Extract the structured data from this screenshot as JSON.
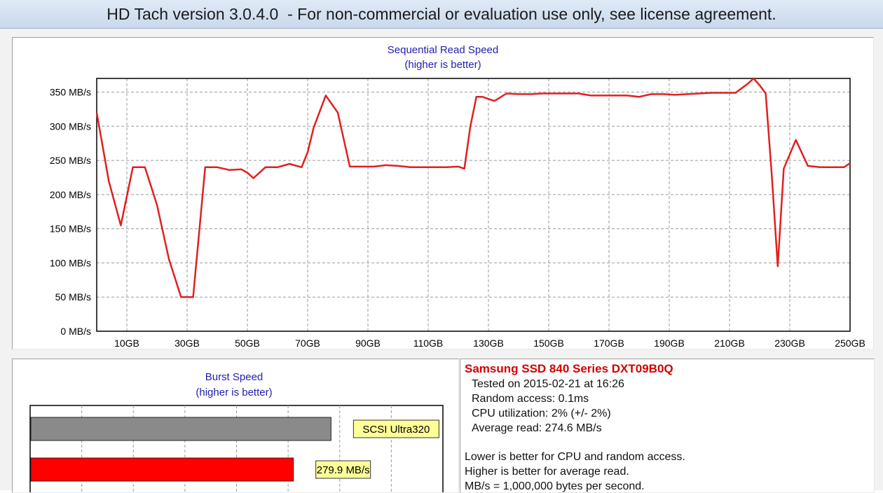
{
  "window": {
    "title": "HD Tach version 3.0.4.0  - For non-commercial or evaluation use only, see license agreement."
  },
  "sequential": {
    "title": "Sequential Read Speed",
    "subtitle": "(higher is better)"
  },
  "burst": {
    "title": "Burst Speed",
    "subtitle": "(higher is better)",
    "bars": [
      {
        "label": "SCSI Ultra320",
        "value": 320,
        "color": "#8a8a8a"
      },
      {
        "label": "279.9 MB/s",
        "value": 279.9,
        "color": "#ff0000"
      }
    ]
  },
  "info": {
    "drive": "Samsung SSD 840 Series DXT09B0Q",
    "tested": "Tested on 2015-02-21 at 16:26",
    "random_access": "Random access: 0.1ms",
    "cpu": "CPU utilization: 2% (+/- 2%)",
    "avg_read": "Average read: 274.6 MB/s",
    "note1": "Lower is better for CPU and random access.",
    "note2": "Higher is better for average read.",
    "note3": "MB/s = 1,000,000 bytes per second."
  },
  "chart_data": {
    "type": "line",
    "title": "Sequential Read Speed",
    "subtitle": "(higher is better)",
    "xlim": [
      0,
      250
    ],
    "ylim": [
      0,
      370
    ],
    "x_ticks": [
      10,
      30,
      50,
      70,
      90,
      110,
      130,
      150,
      170,
      190,
      210,
      230,
      250
    ],
    "x_tick_labels": [
      "10GB",
      "30GB",
      "50GB",
      "70GB",
      "90GB",
      "110GB",
      "130GB",
      "150GB",
      "170GB",
      "190GB",
      "210GB",
      "230GB",
      "250GB"
    ],
    "y_ticks": [
      0,
      50,
      100,
      150,
      200,
      250,
      300,
      350
    ],
    "y_tick_labels": [
      "0 MB/s",
      "50 MB/s",
      "100 MB/s",
      "150 MB/s",
      "200 MB/s",
      "250 MB/s",
      "300 MB/s",
      "350 MB/s"
    ],
    "grid": true,
    "line_color": "#e02020",
    "x": [
      0,
      4,
      8,
      12,
      16,
      20,
      24,
      28,
      32,
      36,
      40,
      44,
      48,
      50,
      52,
      56,
      60,
      64,
      68,
      70,
      72,
      76,
      80,
      84,
      88,
      92,
      96,
      100,
      104,
      108,
      112,
      116,
      120,
      122,
      124,
      126,
      128,
      132,
      136,
      140,
      144,
      148,
      152,
      156,
      160,
      164,
      168,
      172,
      176,
      180,
      184,
      188,
      192,
      196,
      200,
      204,
      208,
      212,
      216,
      218,
      220,
      222,
      224,
      226,
      228,
      232,
      236,
      240,
      244,
      248,
      250
    ],
    "y": [
      320,
      220,
      155,
      240,
      240,
      185,
      105,
      50,
      50,
      240,
      240,
      236,
      237,
      232,
      224,
      240,
      240,
      245,
      240,
      262,
      298,
      345,
      320,
      241,
      241,
      241,
      243,
      242,
      240,
      240,
      240,
      240,
      241,
      238,
      300,
      343,
      343,
      337,
      348,
      347,
      347,
      348,
      348,
      348,
      348,
      345,
      345,
      345,
      345,
      343,
      347,
      347,
      346,
      347,
      348,
      349,
      349,
      349,
      362,
      370,
      360,
      348,
      230,
      95,
      238,
      280,
      242,
      240,
      240,
      240,
      246
    ]
  }
}
